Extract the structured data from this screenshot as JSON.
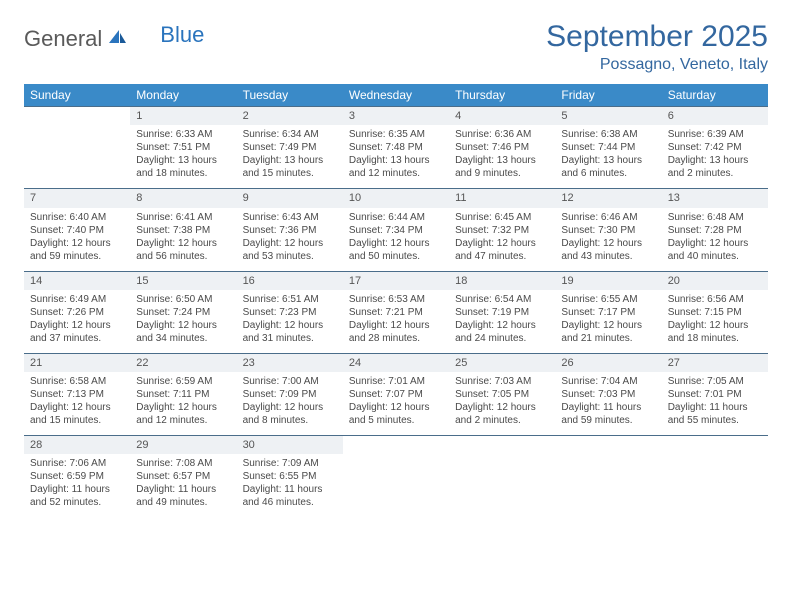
{
  "logo": {
    "general": "General",
    "blue": "Blue"
  },
  "title": {
    "month": "September 2025",
    "location": "Possagno, Veneto, Italy"
  },
  "colors": {
    "header_bg": "#3a8ac8",
    "header_text": "#ffffff",
    "title_color": "#33679f",
    "daynum_bg": "#eef1f4",
    "border": "#4a6d8a",
    "body_text": "#4a4a4a",
    "logo_gray": "#5a5a5a",
    "logo_blue": "#2a74bd"
  },
  "weekdays": [
    "Sunday",
    "Monday",
    "Tuesday",
    "Wednesday",
    "Thursday",
    "Friday",
    "Saturday"
  ],
  "weeks": [
    [
      null,
      {
        "n": "1",
        "sr": "Sunrise: 6:33 AM",
        "ss": "Sunset: 7:51 PM",
        "d1": "Daylight: 13 hours",
        "d2": "and 18 minutes."
      },
      {
        "n": "2",
        "sr": "Sunrise: 6:34 AM",
        "ss": "Sunset: 7:49 PM",
        "d1": "Daylight: 13 hours",
        "d2": "and 15 minutes."
      },
      {
        "n": "3",
        "sr": "Sunrise: 6:35 AM",
        "ss": "Sunset: 7:48 PM",
        "d1": "Daylight: 13 hours",
        "d2": "and 12 minutes."
      },
      {
        "n": "4",
        "sr": "Sunrise: 6:36 AM",
        "ss": "Sunset: 7:46 PM",
        "d1": "Daylight: 13 hours",
        "d2": "and 9 minutes."
      },
      {
        "n": "5",
        "sr": "Sunrise: 6:38 AM",
        "ss": "Sunset: 7:44 PM",
        "d1": "Daylight: 13 hours",
        "d2": "and 6 minutes."
      },
      {
        "n": "6",
        "sr": "Sunrise: 6:39 AM",
        "ss": "Sunset: 7:42 PM",
        "d1": "Daylight: 13 hours",
        "d2": "and 2 minutes."
      }
    ],
    [
      {
        "n": "7",
        "sr": "Sunrise: 6:40 AM",
        "ss": "Sunset: 7:40 PM",
        "d1": "Daylight: 12 hours",
        "d2": "and 59 minutes."
      },
      {
        "n": "8",
        "sr": "Sunrise: 6:41 AM",
        "ss": "Sunset: 7:38 PM",
        "d1": "Daylight: 12 hours",
        "d2": "and 56 minutes."
      },
      {
        "n": "9",
        "sr": "Sunrise: 6:43 AM",
        "ss": "Sunset: 7:36 PM",
        "d1": "Daylight: 12 hours",
        "d2": "and 53 minutes."
      },
      {
        "n": "10",
        "sr": "Sunrise: 6:44 AM",
        "ss": "Sunset: 7:34 PM",
        "d1": "Daylight: 12 hours",
        "d2": "and 50 minutes."
      },
      {
        "n": "11",
        "sr": "Sunrise: 6:45 AM",
        "ss": "Sunset: 7:32 PM",
        "d1": "Daylight: 12 hours",
        "d2": "and 47 minutes."
      },
      {
        "n": "12",
        "sr": "Sunrise: 6:46 AM",
        "ss": "Sunset: 7:30 PM",
        "d1": "Daylight: 12 hours",
        "d2": "and 43 minutes."
      },
      {
        "n": "13",
        "sr": "Sunrise: 6:48 AM",
        "ss": "Sunset: 7:28 PM",
        "d1": "Daylight: 12 hours",
        "d2": "and 40 minutes."
      }
    ],
    [
      {
        "n": "14",
        "sr": "Sunrise: 6:49 AM",
        "ss": "Sunset: 7:26 PM",
        "d1": "Daylight: 12 hours",
        "d2": "and 37 minutes."
      },
      {
        "n": "15",
        "sr": "Sunrise: 6:50 AM",
        "ss": "Sunset: 7:24 PM",
        "d1": "Daylight: 12 hours",
        "d2": "and 34 minutes."
      },
      {
        "n": "16",
        "sr": "Sunrise: 6:51 AM",
        "ss": "Sunset: 7:23 PM",
        "d1": "Daylight: 12 hours",
        "d2": "and 31 minutes."
      },
      {
        "n": "17",
        "sr": "Sunrise: 6:53 AM",
        "ss": "Sunset: 7:21 PM",
        "d1": "Daylight: 12 hours",
        "d2": "and 28 minutes."
      },
      {
        "n": "18",
        "sr": "Sunrise: 6:54 AM",
        "ss": "Sunset: 7:19 PM",
        "d1": "Daylight: 12 hours",
        "d2": "and 24 minutes."
      },
      {
        "n": "19",
        "sr": "Sunrise: 6:55 AM",
        "ss": "Sunset: 7:17 PM",
        "d1": "Daylight: 12 hours",
        "d2": "and 21 minutes."
      },
      {
        "n": "20",
        "sr": "Sunrise: 6:56 AM",
        "ss": "Sunset: 7:15 PM",
        "d1": "Daylight: 12 hours",
        "d2": "and 18 minutes."
      }
    ],
    [
      {
        "n": "21",
        "sr": "Sunrise: 6:58 AM",
        "ss": "Sunset: 7:13 PM",
        "d1": "Daylight: 12 hours",
        "d2": "and 15 minutes."
      },
      {
        "n": "22",
        "sr": "Sunrise: 6:59 AM",
        "ss": "Sunset: 7:11 PM",
        "d1": "Daylight: 12 hours",
        "d2": "and 12 minutes."
      },
      {
        "n": "23",
        "sr": "Sunrise: 7:00 AM",
        "ss": "Sunset: 7:09 PM",
        "d1": "Daylight: 12 hours",
        "d2": "and 8 minutes."
      },
      {
        "n": "24",
        "sr": "Sunrise: 7:01 AM",
        "ss": "Sunset: 7:07 PM",
        "d1": "Daylight: 12 hours",
        "d2": "and 5 minutes."
      },
      {
        "n": "25",
        "sr": "Sunrise: 7:03 AM",
        "ss": "Sunset: 7:05 PM",
        "d1": "Daylight: 12 hours",
        "d2": "and 2 minutes."
      },
      {
        "n": "26",
        "sr": "Sunrise: 7:04 AM",
        "ss": "Sunset: 7:03 PM",
        "d1": "Daylight: 11 hours",
        "d2": "and 59 minutes."
      },
      {
        "n": "27",
        "sr": "Sunrise: 7:05 AM",
        "ss": "Sunset: 7:01 PM",
        "d1": "Daylight: 11 hours",
        "d2": "and 55 minutes."
      }
    ],
    [
      {
        "n": "28",
        "sr": "Sunrise: 7:06 AM",
        "ss": "Sunset: 6:59 PM",
        "d1": "Daylight: 11 hours",
        "d2": "and 52 minutes."
      },
      {
        "n": "29",
        "sr": "Sunrise: 7:08 AM",
        "ss": "Sunset: 6:57 PM",
        "d1": "Daylight: 11 hours",
        "d2": "and 49 minutes."
      },
      {
        "n": "30",
        "sr": "Sunrise: 7:09 AM",
        "ss": "Sunset: 6:55 PM",
        "d1": "Daylight: 11 hours",
        "d2": "and 46 minutes."
      },
      null,
      null,
      null,
      null
    ]
  ]
}
